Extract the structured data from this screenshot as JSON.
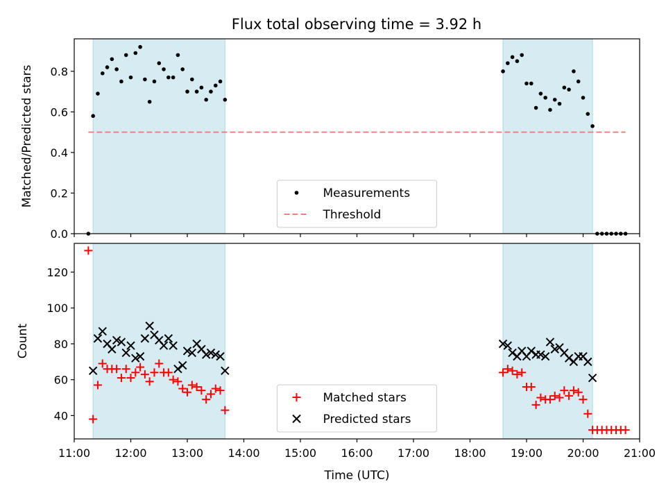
{
  "title": "Flux total observing time = 3.92 h",
  "chart_data": [
    {
      "type": "scatter",
      "ylabel": "Matched/Predicted stars",
      "xlabel": "",
      "xlim": [
        "11:00",
        "21:00"
      ],
      "ylim": [
        0,
        0.96
      ],
      "yticks": [
        0.0,
        0.2,
        0.4,
        0.6,
        0.8
      ],
      "ytick_labels": [
        "0.0",
        "0.2",
        "0.4",
        "0.6",
        "0.8"
      ],
      "grid": false,
      "legend_position": "lower center",
      "shaded_intervals": [
        [
          "11:20",
          "13:40"
        ],
        [
          "18:35",
          "20:10"
        ]
      ],
      "series": [
        {
          "name": "Measurements",
          "marker": "dot",
          "color": "#000000",
          "points": [
            [
              "11:15",
              0.0
            ],
            [
              "11:20",
              0.58
            ],
            [
              "11:25",
              0.69
            ],
            [
              "11:30",
              0.79
            ],
            [
              "11:35",
              0.82
            ],
            [
              "11:40",
              0.86
            ],
            [
              "11:45",
              0.81
            ],
            [
              "11:50",
              0.75
            ],
            [
              "11:55",
              0.88
            ],
            [
              "12:00",
              0.77
            ],
            [
              "12:05",
              0.89
            ],
            [
              "12:10",
              0.92
            ],
            [
              "12:15",
              0.76
            ],
            [
              "12:20",
              0.65
            ],
            [
              "12:25",
              0.75
            ],
            [
              "12:30",
              0.84
            ],
            [
              "12:35",
              0.81
            ],
            [
              "12:40",
              0.77
            ],
            [
              "12:45",
              0.77
            ],
            [
              "12:50",
              0.88
            ],
            [
              "12:55",
              0.81
            ],
            [
              "13:00",
              0.7
            ],
            [
              "13:05",
              0.76
            ],
            [
              "13:10",
              0.7
            ],
            [
              "13:15",
              0.72
            ],
            [
              "13:20",
              0.66
            ],
            [
              "13:25",
              0.7
            ],
            [
              "13:30",
              0.73
            ],
            [
              "13:35",
              0.75
            ],
            [
              "13:40",
              0.66
            ],
            [
              "18:35",
              0.8
            ],
            [
              "18:40",
              0.84
            ],
            [
              "18:45",
              0.87
            ],
            [
              "18:50",
              0.85
            ],
            [
              "18:55",
              0.88
            ],
            [
              "19:00",
              0.74
            ],
            [
              "19:05",
              0.74
            ],
            [
              "19:10",
              0.62
            ],
            [
              "19:15",
              0.69
            ],
            [
              "19:20",
              0.67
            ],
            [
              "19:25",
              0.61
            ],
            [
              "19:30",
              0.66
            ],
            [
              "19:35",
              0.64
            ],
            [
              "19:40",
              0.72
            ],
            [
              "19:45",
              0.71
            ],
            [
              "19:50",
              0.8
            ],
            [
              "19:55",
              0.75
            ],
            [
              "20:00",
              0.67
            ],
            [
              "20:05",
              0.59
            ],
            [
              "20:10",
              0.53
            ],
            [
              "20:15",
              0.0
            ],
            [
              "20:20",
              0.0
            ],
            [
              "20:25",
              0.0
            ],
            [
              "20:30",
              0.0
            ],
            [
              "20:35",
              0.0
            ],
            [
              "20:40",
              0.0
            ],
            [
              "20:45",
              0.0
            ]
          ]
        },
        {
          "name": "Threshold",
          "style": "dashed-line",
          "color": "#f08080",
          "points": [
            [
              "11:15",
              0.5
            ],
            [
              "20:45",
              0.5
            ]
          ]
        }
      ]
    },
    {
      "type": "scatter",
      "ylabel": "Count",
      "xlabel": "Time (UTC)",
      "xlim": [
        "11:00",
        "21:00"
      ],
      "xticks": [
        "11:00",
        "12:00",
        "13:00",
        "14:00",
        "15:00",
        "16:00",
        "17:00",
        "18:00",
        "19:00",
        "20:00",
        "21:00"
      ],
      "ylim": [
        27,
        136
      ],
      "yticks": [
        40,
        60,
        80,
        100,
        120
      ],
      "ytick_labels": [
        "40",
        "60",
        "80",
        "100",
        "120"
      ],
      "grid": false,
      "legend_position": "lower center",
      "shaded_intervals": [
        [
          "11:20",
          "13:40"
        ],
        [
          "18:35",
          "20:10"
        ]
      ],
      "series": [
        {
          "name": "Matched stars",
          "marker": "plus",
          "color": "#ff0000",
          "points": [
            [
              "11:15",
              132
            ],
            [
              "11:20",
              38
            ],
            [
              "11:25",
              57
            ],
            [
              "11:30",
              69
            ],
            [
              "11:35",
              66
            ],
            [
              "11:40",
              66
            ],
            [
              "11:45",
              66
            ],
            [
              "11:50",
              61
            ],
            [
              "11:55",
              66
            ],
            [
              "12:00",
              61
            ],
            [
              "12:05",
              64
            ],
            [
              "12:10",
              67
            ],
            [
              "12:15",
              63
            ],
            [
              "12:20",
              59
            ],
            [
              "12:25",
              64
            ],
            [
              "12:30",
              69
            ],
            [
              "12:35",
              64
            ],
            [
              "12:40",
              64
            ],
            [
              "12:45",
              60
            ],
            [
              "12:50",
              59
            ],
            [
              "12:55",
              55
            ],
            [
              "13:00",
              53
            ],
            [
              "13:05",
              57
            ],
            [
              "13:10",
              56
            ],
            [
              "13:15",
              54
            ],
            [
              "13:20",
              49
            ],
            [
              "13:25",
              52
            ],
            [
              "13:30",
              55
            ],
            [
              "13:35",
              54
            ],
            [
              "13:40",
              43
            ],
            [
              "18:35",
              64
            ],
            [
              "18:40",
              66
            ],
            [
              "18:45",
              65
            ],
            [
              "18:50",
              63
            ],
            [
              "18:55",
              64
            ],
            [
              "19:00",
              56
            ],
            [
              "19:05",
              56
            ],
            [
              "19:10",
              46
            ],
            [
              "19:15",
              50
            ],
            [
              "19:20",
              49
            ],
            [
              "19:25",
              49
            ],
            [
              "19:30",
              51
            ],
            [
              "19:35",
              50
            ],
            [
              "19:40",
              54
            ],
            [
              "19:45",
              51
            ],
            [
              "19:50",
              54
            ],
            [
              "19:55",
              53
            ],
            [
              "20:00",
              49
            ],
            [
              "20:05",
              41
            ],
            [
              "20:10",
              32
            ],
            [
              "20:15",
              32
            ],
            [
              "20:20",
              32
            ],
            [
              "20:25",
              32
            ],
            [
              "20:30",
              32
            ],
            [
              "20:35",
              32
            ],
            [
              "20:40",
              32
            ],
            [
              "20:45",
              32
            ]
          ]
        },
        {
          "name": "Predicted stars",
          "marker": "x",
          "color": "#000000",
          "points": [
            [
              "11:20",
              65
            ],
            [
              "11:25",
              83
            ],
            [
              "11:30",
              87
            ],
            [
              "11:35",
              80
            ],
            [
              "11:40",
              77
            ],
            [
              "11:45",
              82
            ],
            [
              "11:50",
              81
            ],
            [
              "11:55",
              75
            ],
            [
              "12:00",
              79
            ],
            [
              "12:05",
              72
            ],
            [
              "12:10",
              73
            ],
            [
              "12:15",
              83
            ],
            [
              "12:20",
              90
            ],
            [
              "12:25",
              85
            ],
            [
              "12:30",
              82
            ],
            [
              "12:35",
              79
            ],
            [
              "12:40",
              83
            ],
            [
              "12:45",
              79
            ],
            [
              "12:50",
              66
            ],
            [
              "12:55",
              68
            ],
            [
              "13:00",
              76
            ],
            [
              "13:05",
              75
            ],
            [
              "13:10",
              80
            ],
            [
              "13:15",
              77
            ],
            [
              "13:20",
              74
            ],
            [
              "13:25",
              75
            ],
            [
              "13:30",
              74
            ],
            [
              "13:35",
              73
            ],
            [
              "13:40",
              65
            ],
            [
              "18:35",
              80
            ],
            [
              "18:40",
              79
            ],
            [
              "18:45",
              75
            ],
            [
              "18:50",
              73
            ],
            [
              "18:55",
              76
            ],
            [
              "19:00",
              73
            ],
            [
              "19:05",
              76
            ],
            [
              "19:10",
              74
            ],
            [
              "19:15",
              74
            ],
            [
              "19:20",
              73
            ],
            [
              "19:25",
              81
            ],
            [
              "19:30",
              77
            ],
            [
              "19:35",
              78
            ],
            [
              "19:40",
              75
            ],
            [
              "19:45",
              72
            ],
            [
              "19:50",
              70
            ],
            [
              "19:55",
              73
            ],
            [
              "20:00",
              73
            ],
            [
              "20:05",
              70
            ],
            [
              "20:10",
              61
            ]
          ]
        }
      ]
    }
  ]
}
